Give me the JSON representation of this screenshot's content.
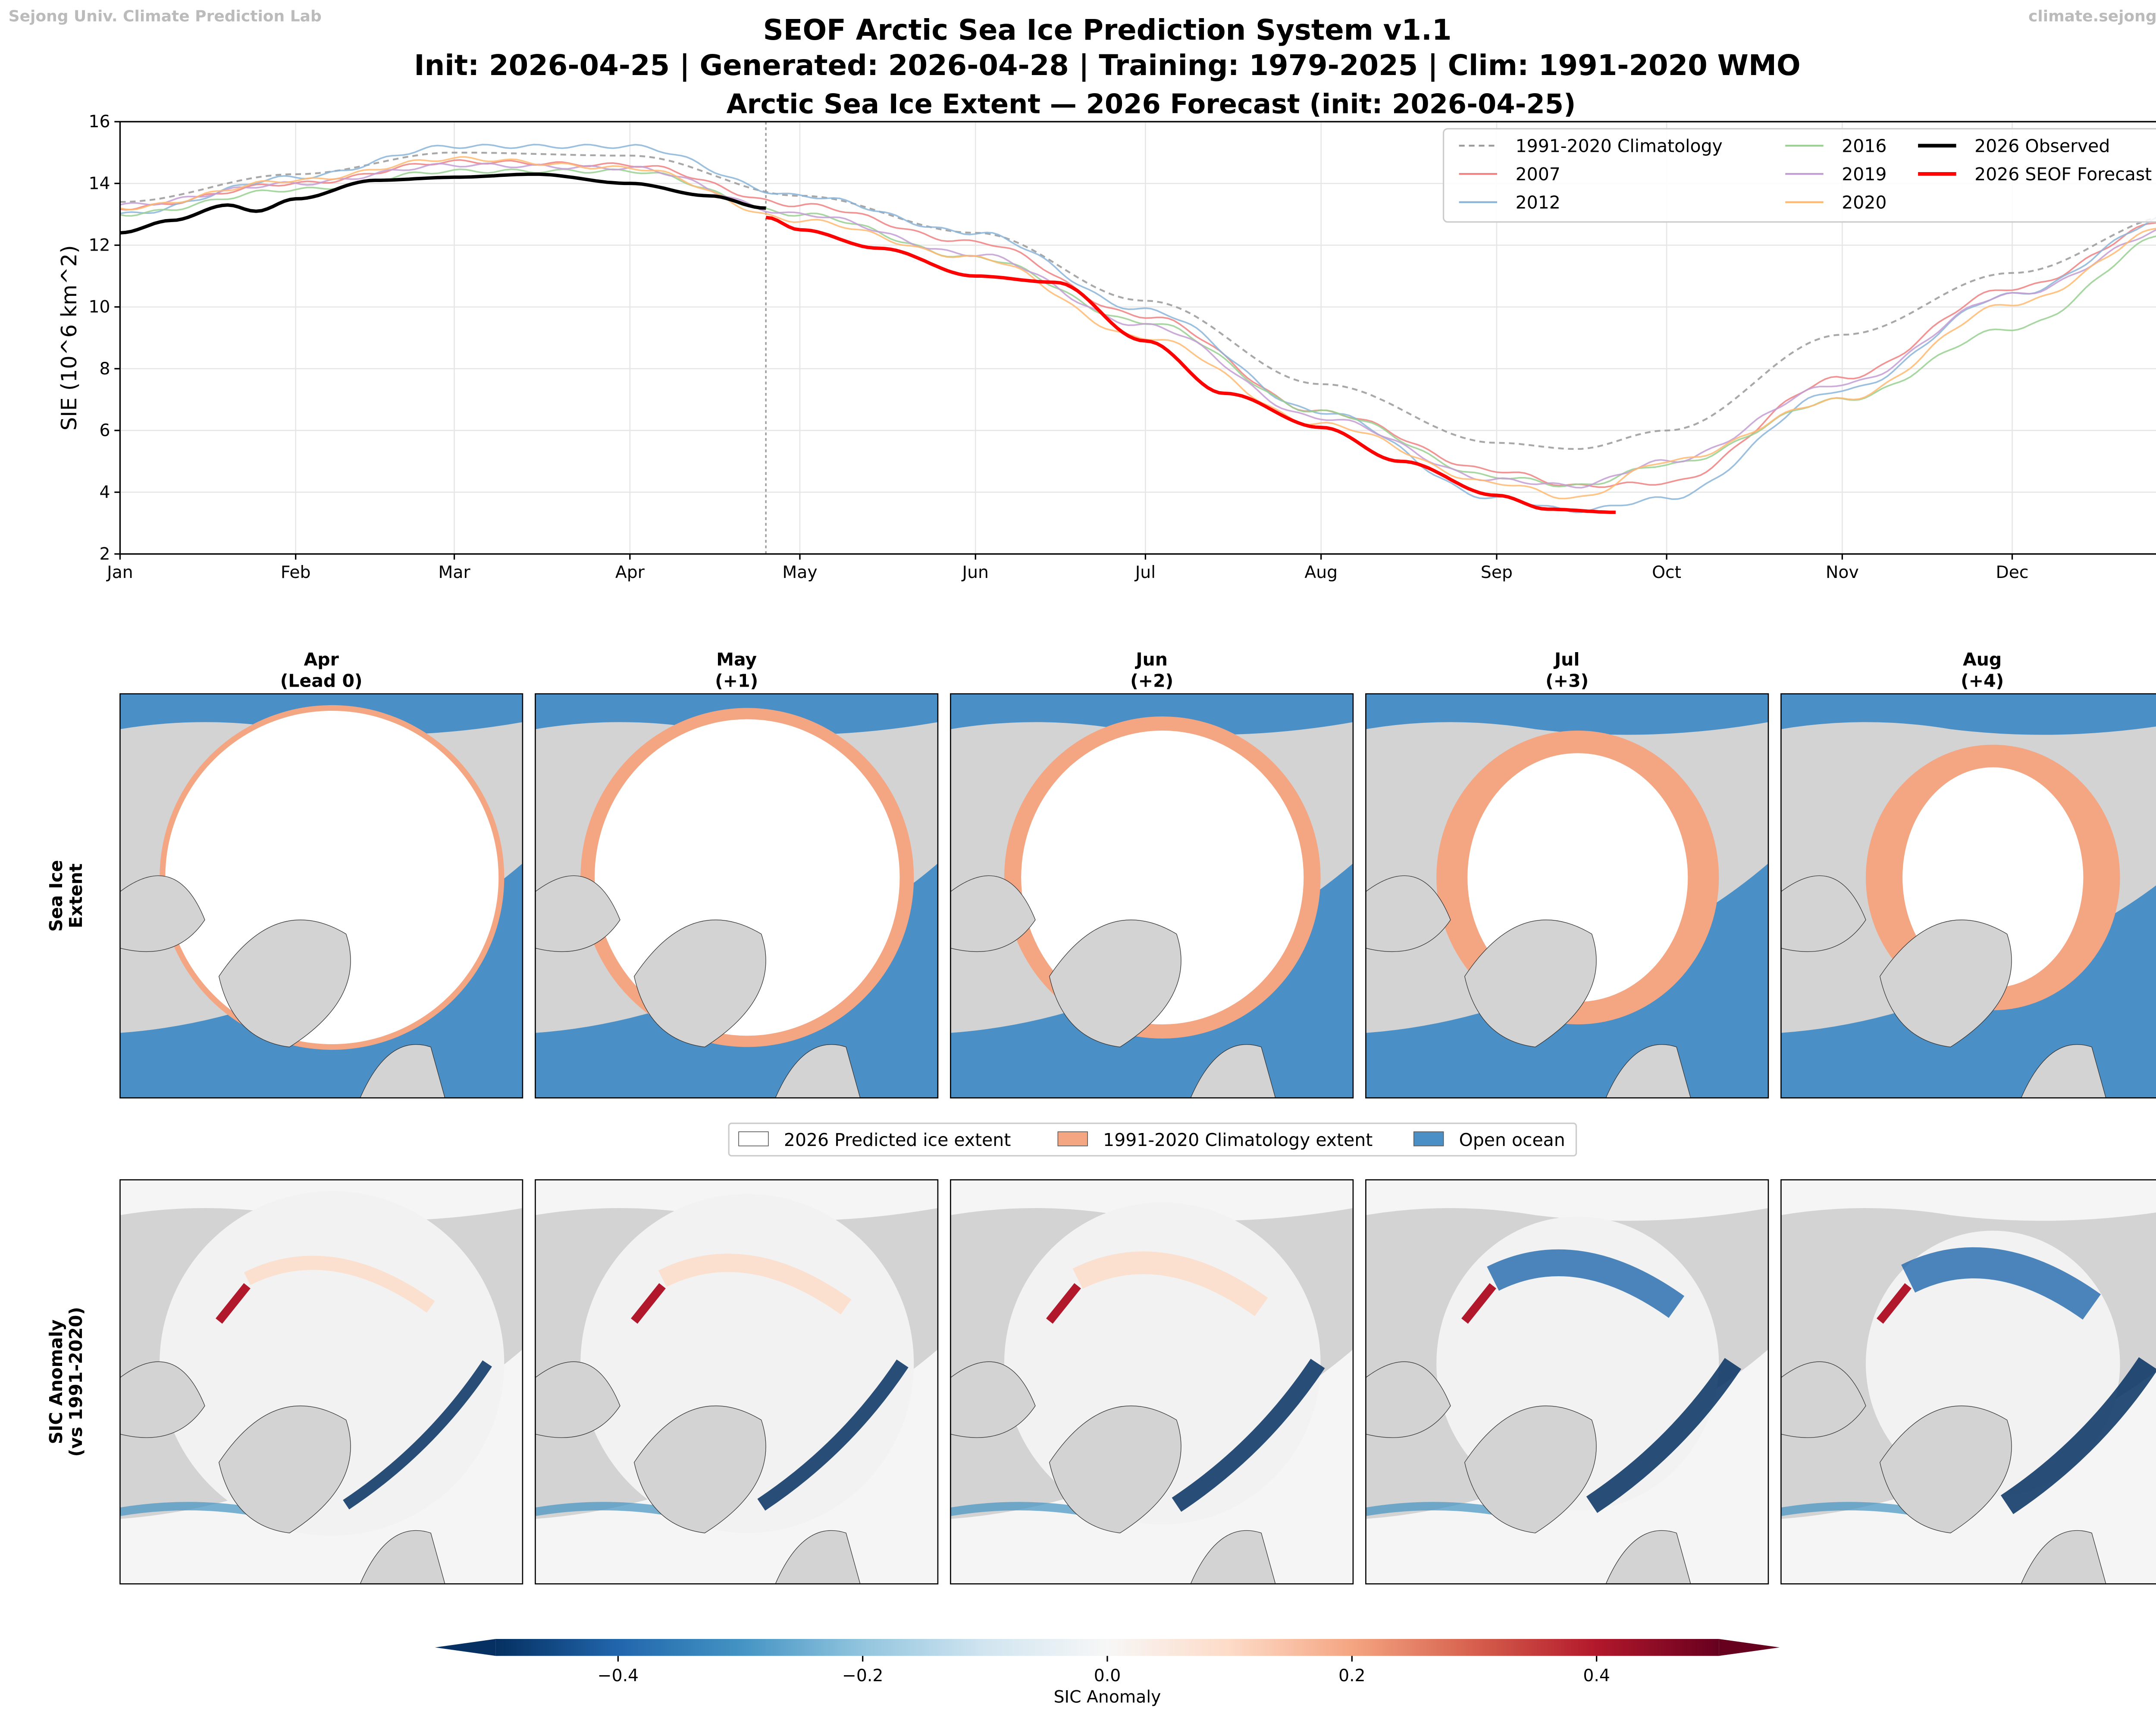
{
  "watermark_left": "Sejong Univ. Climate Prediction Lab",
  "watermark_right": "climate.sejong.ac.kr",
  "suptitle_line1": "SEOF Arctic Sea Ice Prediction System v1.1",
  "suptitle_line2": "Init: 2026-04-25 | Generated: 2026-04-28 | Training: 1979-2025 | Clim: 1991-2020 WMO",
  "chart_data": [
    {
      "type": "line",
      "title": "Arctic Sea Ice Extent — 2026 Forecast (init: 2026-04-25)",
      "ylabel": "SIE (10^6 km^2)",
      "ylabel_parts": {
        "base": "SIE (10",
        "sup": "6",
        "unit": " km",
        "sup2": "2",
        "close": ")"
      },
      "x_unit": "day of year",
      "xlim": [
        1,
        365
      ],
      "ylim": [
        2,
        16
      ],
      "yticks": [
        2,
        4,
        6,
        8,
        10,
        12,
        14,
        16
      ],
      "xticks": [
        {
          "day": 1,
          "label": "Jan"
        },
        {
          "day": 32,
          "label": "Feb"
        },
        {
          "day": 60,
          "label": "Mar"
        },
        {
          "day": 91,
          "label": "Apr"
        },
        {
          "day": 121,
          "label": "May"
        },
        {
          "day": 152,
          "label": "Jun"
        },
        {
          "day": 182,
          "label": "Jul"
        },
        {
          "day": 213,
          "label": "Aug"
        },
        {
          "day": 244,
          "label": "Sep"
        },
        {
          "day": 274,
          "label": "Oct"
        },
        {
          "day": 305,
          "label": "Nov"
        },
        {
          "day": 335,
          "label": "Dec"
        }
      ],
      "grid": true,
      "init_marker_day": 115,
      "legend_placement": "upper-right",
      "series": [
        {
          "name": "1991-2020 Climatology",
          "color": "#999999",
          "style": "dashed",
          "x": [
            1,
            32,
            60,
            91,
            121,
            152,
            182,
            213,
            244,
            258,
            274,
            305,
            335,
            365
          ],
          "y": [
            13.4,
            14.3,
            15.0,
            14.9,
            13.6,
            12.4,
            10.2,
            7.5,
            5.6,
            5.4,
            6.0,
            9.1,
            11.1,
            13.0
          ]
        },
        {
          "name": "2007",
          "color": "#f08080",
          "style": "solid",
          "x": [
            1,
            32,
            60,
            91,
            121,
            152,
            182,
            213,
            244,
            258,
            274,
            305,
            335,
            365
          ],
          "y": [
            13.2,
            14.0,
            14.7,
            14.6,
            13.3,
            12.1,
            9.7,
            6.6,
            4.7,
            4.2,
            4.3,
            7.7,
            10.6,
            12.9
          ]
        },
        {
          "name": "2012",
          "color": "#8ab4d8",
          "style": "solid",
          "x": [
            1,
            32,
            60,
            91,
            121,
            152,
            182,
            213,
            244,
            258,
            274,
            305,
            335,
            365
          ],
          "y": [
            13.0,
            14.2,
            15.2,
            15.2,
            13.6,
            12.4,
            9.9,
            6.6,
            3.8,
            3.4,
            3.8,
            7.3,
            10.4,
            13.0
          ]
        },
        {
          "name": "2016",
          "color": "#98d08f",
          "style": "solid",
          "x": [
            1,
            32,
            60,
            91,
            121,
            152,
            182,
            213,
            244,
            258,
            274,
            305,
            335,
            365
          ],
          "y": [
            13.0,
            13.8,
            14.4,
            14.4,
            13.0,
            11.6,
            9.5,
            6.6,
            4.5,
            4.2,
            4.9,
            7.0,
            9.3,
            12.5
          ]
        },
        {
          "name": "2019",
          "color": "#c39bd3",
          "style": "solid",
          "x": [
            1,
            32,
            60,
            91,
            121,
            152,
            182,
            213,
            244,
            258,
            274,
            305,
            335,
            365
          ],
          "y": [
            13.3,
            14.0,
            14.6,
            14.5,
            13.0,
            11.7,
            9.4,
            6.4,
            4.4,
            4.2,
            5.0,
            7.5,
            10.4,
            12.6
          ]
        },
        {
          "name": "2020",
          "color": "#ffb870",
          "style": "solid",
          "x": [
            1,
            32,
            60,
            91,
            121,
            152,
            182,
            213,
            244,
            258,
            274,
            305,
            335,
            365
          ],
          "y": [
            13.2,
            14.1,
            14.8,
            14.5,
            12.8,
            11.6,
            9.0,
            6.2,
            4.3,
            3.8,
            5.0,
            7.0,
            10.1,
            12.7
          ]
        },
        {
          "name": "2026 Observed",
          "color": "#000000",
          "style": "bold",
          "x": [
            1,
            10,
            20,
            25,
            32,
            46,
            60,
            74,
            91,
            105,
            115
          ],
          "y": [
            12.4,
            12.8,
            13.3,
            13.1,
            13.5,
            14.1,
            14.2,
            14.3,
            14.0,
            13.6,
            13.2
          ]
        },
        {
          "name": "2026 SEOF Forecast",
          "color": "#ff0000",
          "style": "bold",
          "x": [
            115,
            121,
            135,
            152,
            166,
            182,
            196,
            213,
            227,
            244,
            253,
            265
          ],
          "y": [
            12.9,
            12.5,
            11.9,
            11.0,
            10.8,
            8.9,
            7.2,
            6.1,
            5.0,
            3.9,
            3.45,
            3.35
          ]
        }
      ]
    },
    {
      "type": "heatmap",
      "colorbar": {
        "label": "SIC Anomaly",
        "range": [
          -0.5,
          0.5
        ],
        "ticks": [
          -0.4,
          -0.2,
          0.0,
          0.2,
          0.4
        ],
        "tick_labels": [
          "−0.4",
          "−0.2",
          "0.0",
          "0.2",
          "0.4"
        ],
        "colormap": "RdBu_r",
        "extend": "both"
      }
    }
  ],
  "maps": {
    "row_labels": [
      [
        "Sea Ice",
        "Extent"
      ],
      [
        "SIC Anomaly",
        "(vs 1991-2020)"
      ]
    ],
    "panels": [
      {
        "month": "Apr",
        "lead": "(Lead 0)"
      },
      {
        "month": "May",
        "lead": "(+1)"
      },
      {
        "month": "Jun",
        "lead": "(+2)"
      },
      {
        "month": "Jul",
        "lead": "(+3)"
      },
      {
        "month": "Aug",
        "lead": "(+4)"
      }
    ],
    "legend": [
      {
        "label": "2026 Predicted ice extent",
        "color": "#ffffff"
      },
      {
        "label": "1991-2020 Climatology extent",
        "color": "#f4a582"
      },
      {
        "label": "Open ocean",
        "color": "#4a8fc6"
      }
    ],
    "land_color": "#d3d3d3"
  }
}
